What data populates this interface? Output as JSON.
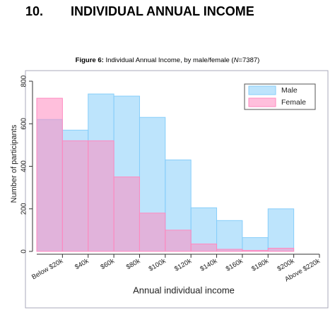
{
  "heading": {
    "number": "10.",
    "title": "INDIVIDUAL ANNUAL INCOME"
  },
  "figure": {
    "caption_label": "Figure 6:",
    "caption_text": "Individual Annual Income, by male/female (",
    "caption_n": "N",
    "caption_end": "=7387)"
  },
  "chart_data": {
    "type": "bar",
    "overlap": true,
    "x_label": "Annual individual income",
    "y_label": "Number of participants",
    "categories": [
      "Below $20k",
      "$40k",
      "$60k",
      "$80k",
      "$100k",
      "$120k",
      "$140k",
      "$160k",
      "$180k",
      "$200k",
      "Above $220k"
    ],
    "series": [
      {
        "name": "Male",
        "color": "#87cefa",
        "values": [
          620,
          570,
          740,
          730,
          630,
          430,
          205,
          145,
          65,
          200,
          null
        ]
      },
      {
        "name": "Female",
        "color": "#ff8ac0",
        "values": [
          720,
          520,
          520,
          350,
          180,
          100,
          35,
          10,
          5,
          15,
          null
        ]
      }
    ],
    "ylim": [
      0,
      800
    ],
    "yticks": [
      0,
      200,
      400,
      600,
      800
    ],
    "legend": "top-right"
  }
}
